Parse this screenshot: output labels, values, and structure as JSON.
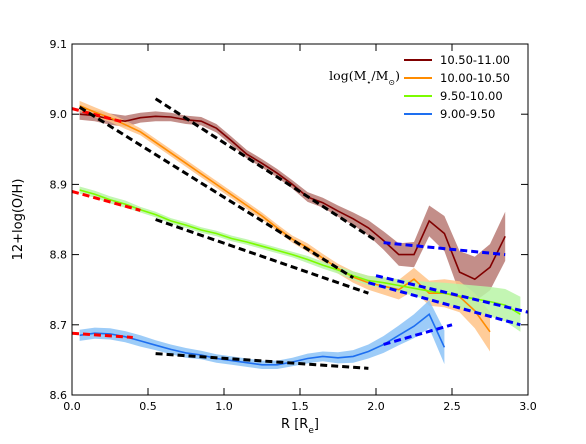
{
  "chart_data": {
    "type": "line",
    "title": "",
    "xlabel": "R [R_e]",
    "ylabel": "12+log(O/H)",
    "xlim": [
      0.0,
      3.0
    ],
    "ylim": [
      8.6,
      9.1
    ],
    "xticks": [
      0.0,
      0.5,
      1.0,
      1.5,
      2.0,
      2.5,
      3.0
    ],
    "xtick_labels": [
      "0.0",
      "0.5",
      "1.0",
      "1.5",
      "2.0",
      "2.5",
      "3.0"
    ],
    "yticks": [
      8.6,
      8.7,
      8.8,
      8.9,
      9.0,
      9.1
    ],
    "ytick_labels": [
      "8.6",
      "8.7",
      "8.8",
      "8.9",
      "9.0",
      "9.1"
    ],
    "grid": false,
    "legend_title": "log(M⋆/M⊙)",
    "legend_position": "top-right",
    "series": [
      {
        "name": "10.50-11.00",
        "color": "#800000",
        "band_color": "#b97a74",
        "x": [
          0.05,
          0.15,
          0.25,
          0.35,
          0.45,
          0.55,
          0.65,
          0.75,
          0.85,
          0.95,
          1.05,
          1.15,
          1.25,
          1.35,
          1.45,
          1.55,
          1.65,
          1.75,
          1.85,
          1.95,
          2.05,
          2.15,
          2.25,
          2.35,
          2.45,
          2.55,
          2.65,
          2.75,
          2.85
        ],
        "y": [
          9.0,
          8.998,
          8.993,
          8.99,
          8.995,
          8.997,
          8.996,
          8.992,
          8.99,
          8.98,
          8.962,
          8.943,
          8.93,
          8.916,
          8.9,
          8.882,
          8.874,
          8.862,
          8.851,
          8.838,
          8.82,
          8.8,
          8.8,
          8.848,
          8.83,
          8.775,
          8.765,
          8.782,
          8.826
        ],
        "err": [
          0.008,
          0.008,
          0.008,
          0.008,
          0.007,
          0.007,
          0.006,
          0.006,
          0.006,
          0.006,
          0.006,
          0.006,
          0.006,
          0.006,
          0.006,
          0.007,
          0.007,
          0.008,
          0.009,
          0.011,
          0.013,
          0.016,
          0.018,
          0.022,
          0.025,
          0.03,
          0.032,
          0.033,
          0.035
        ]
      },
      {
        "name": "10.00-10.50",
        "color": "#ff8c00",
        "band_color": "#ffc387",
        "x": [
          0.05,
          0.15,
          0.25,
          0.35,
          0.45,
          0.55,
          0.65,
          0.75,
          0.85,
          0.95,
          1.05,
          1.15,
          1.25,
          1.35,
          1.45,
          1.55,
          1.65,
          1.75,
          1.85,
          1.95,
          2.05,
          2.15,
          2.25,
          2.35,
          2.45,
          2.55,
          2.65,
          2.75
        ],
        "y": [
          9.012,
          9.003,
          8.995,
          8.985,
          8.975,
          8.96,
          8.945,
          8.93,
          8.915,
          8.9,
          8.885,
          8.87,
          8.855,
          8.838,
          8.822,
          8.81,
          8.795,
          8.78,
          8.768,
          8.76,
          8.755,
          8.75,
          8.765,
          8.745,
          8.745,
          8.74,
          8.72,
          8.69
        ],
        "err": [
          0.007,
          0.007,
          0.006,
          0.006,
          0.005,
          0.005,
          0.005,
          0.005,
          0.005,
          0.005,
          0.005,
          0.005,
          0.005,
          0.005,
          0.005,
          0.006,
          0.006,
          0.007,
          0.008,
          0.01,
          0.012,
          0.014,
          0.016,
          0.018,
          0.02,
          0.022,
          0.025,
          0.028
        ]
      },
      {
        "name": "9.50-10.00",
        "color": "#7cfc00",
        "band_color": "#b8f4a6",
        "x": [
          0.05,
          0.15,
          0.25,
          0.35,
          0.45,
          0.55,
          0.65,
          0.75,
          0.85,
          0.95,
          1.05,
          1.15,
          1.25,
          1.35,
          1.45,
          1.55,
          1.65,
          1.75,
          1.85,
          1.95,
          2.05,
          2.15,
          2.25,
          2.35,
          2.45,
          2.55,
          2.65,
          2.75,
          2.85,
          2.95
        ],
        "y": [
          8.892,
          8.886,
          8.878,
          8.872,
          8.864,
          8.857,
          8.848,
          8.842,
          8.835,
          8.83,
          8.823,
          8.818,
          8.812,
          8.806,
          8.8,
          8.793,
          8.785,
          8.778,
          8.77,
          8.763,
          8.76,
          8.756,
          8.752,
          8.748,
          8.745,
          8.741,
          8.737,
          8.733,
          8.728,
          8.715
        ],
        "err": [
          0.005,
          0.005,
          0.005,
          0.005,
          0.004,
          0.004,
          0.004,
          0.004,
          0.004,
          0.004,
          0.004,
          0.004,
          0.004,
          0.004,
          0.004,
          0.005,
          0.005,
          0.005,
          0.006,
          0.007,
          0.008,
          0.009,
          0.011,
          0.013,
          0.015,
          0.017,
          0.019,
          0.021,
          0.023,
          0.025
        ]
      },
      {
        "name": "9.00-9.50",
        "color": "#1e6ff0",
        "band_color": "#8cc3f7",
        "x": [
          0.05,
          0.15,
          0.25,
          0.35,
          0.45,
          0.55,
          0.65,
          0.75,
          0.85,
          0.95,
          1.05,
          1.15,
          1.25,
          1.35,
          1.45,
          1.55,
          1.65,
          1.75,
          1.85,
          1.95,
          2.05,
          2.15,
          2.25,
          2.35,
          2.45
        ],
        "y": [
          8.685,
          8.688,
          8.687,
          8.683,
          8.677,
          8.671,
          8.665,
          8.66,
          8.657,
          8.652,
          8.649,
          8.646,
          8.643,
          8.643,
          8.647,
          8.652,
          8.655,
          8.653,
          8.655,
          8.662,
          8.672,
          8.685,
          8.698,
          8.715,
          8.668
        ],
        "err": [
          0.008,
          0.008,
          0.008,
          0.008,
          0.008,
          0.007,
          0.007,
          0.007,
          0.006,
          0.006,
          0.006,
          0.006,
          0.006,
          0.006,
          0.006,
          0.007,
          0.007,
          0.008,
          0.009,
          0.01,
          0.012,
          0.014,
          0.017,
          0.02,
          0.024
        ]
      }
    ],
    "fit_lines": [
      {
        "color": "#ff0000",
        "x": [
          0.0,
          0.35
        ],
        "y": [
          9.008,
          8.988
        ]
      },
      {
        "color": "#ff0000",
        "x": [
          0.0,
          0.45
        ],
        "y": [
          8.89,
          8.863
        ]
      },
      {
        "color": "#ff0000",
        "x": [
          0.0,
          0.4
        ],
        "y": [
          8.688,
          8.682
        ]
      },
      {
        "color": "#000000",
        "x": [
          0.55,
          2.0
        ],
        "y": [
          9.022,
          8.82
        ]
      },
      {
        "color": "#000000",
        "x": [
          0.05,
          1.85
        ],
        "y": [
          9.01,
          8.767
        ]
      },
      {
        "color": "#000000",
        "x": [
          0.55,
          1.95
        ],
        "y": [
          8.85,
          8.745
        ]
      },
      {
        "color": "#000000",
        "x": [
          0.55,
          1.95
        ],
        "y": [
          8.659,
          8.638
        ]
      },
      {
        "color": "#0000ff",
        "x": [
          2.05,
          2.85
        ],
        "y": [
          8.817,
          8.8
        ]
      },
      {
        "color": "#0000ff",
        "x": [
          1.95,
          2.95
        ],
        "y": [
          8.76,
          8.7
        ]
      },
      {
        "color": "#0000ff",
        "x": [
          2.0,
          3.0
        ],
        "y": [
          8.77,
          8.718
        ]
      },
      {
        "color": "#0000ff",
        "x": [
          2.05,
          2.5
        ],
        "y": [
          8.672,
          8.7
        ]
      }
    ]
  }
}
